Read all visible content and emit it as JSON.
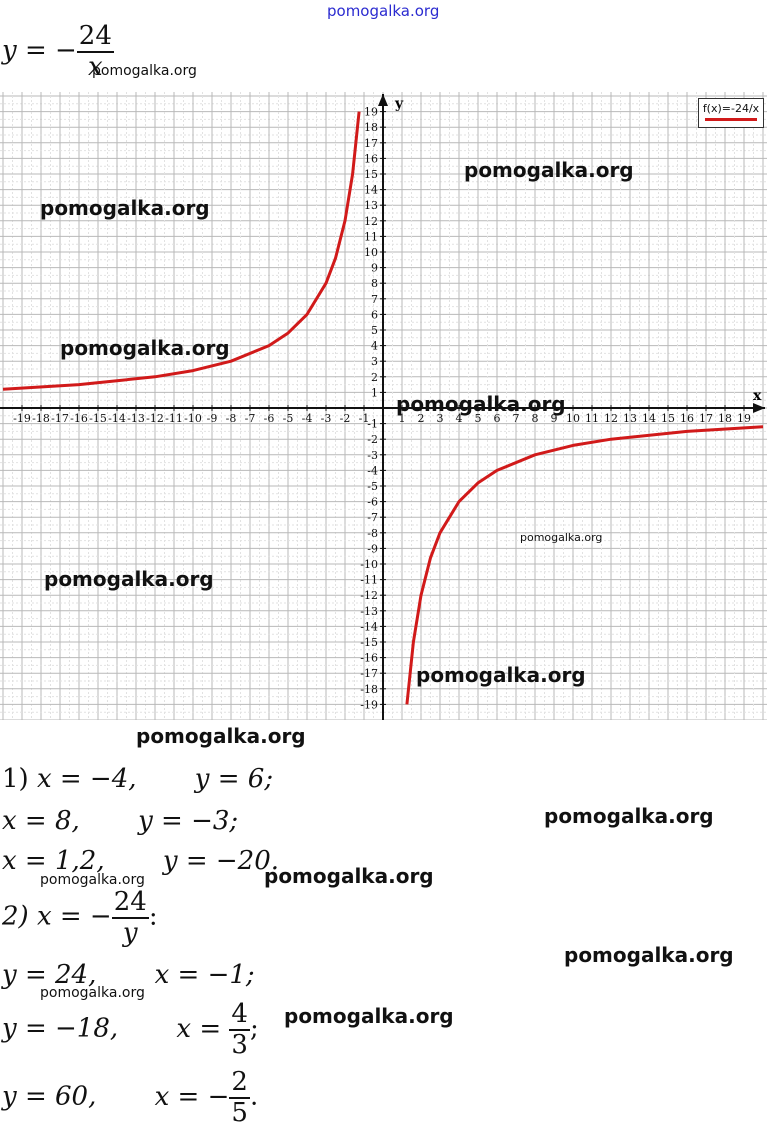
{
  "watermark_top": "pomogalka.org",
  "formula_main": {
    "lhs": "y = −",
    "num": "24",
    "den": "x"
  },
  "watermarks": [
    "pomogalka.org",
    "pomogalka.org",
    "pomogalka.org",
    "pomogalka.org",
    "pomogalka.org",
    "pomogalka.org",
    "pomogalka.org",
    "pomogalka.org",
    "pomogalka.org",
    "pomogalka.org",
    "pomogalka.org",
    "pomogalka.org",
    "pomogalka.org",
    "pomogalka.org",
    "pomogalka.org",
    "pomogalka.org"
  ],
  "chart_data": {
    "type": "line",
    "function": "f(x)=-24/x",
    "legend": "f(x)=-24/x",
    "legend_position": "top-right",
    "xlabel": "x",
    "ylabel": "y",
    "xlim": [
      -19,
      19
    ],
    "ylim": [
      -19,
      19
    ],
    "grid": true,
    "x_ticks": [
      -19,
      -18,
      -17,
      -16,
      -15,
      -14,
      -13,
      -12,
      -11,
      -10,
      -9,
      -8,
      -7,
      -6,
      -5,
      -4,
      -3,
      -2,
      -1,
      1,
      2,
      3,
      4,
      5,
      6,
      7,
      8,
      9,
      10,
      11,
      12,
      13,
      14,
      15,
      16,
      17,
      18,
      19
    ],
    "y_ticks": [
      -19,
      -18,
      -17,
      -16,
      -15,
      -14,
      -13,
      -12,
      -11,
      -10,
      -9,
      -8,
      -7,
      -6,
      -5,
      -4,
      -3,
      -2,
      -1,
      1,
      2,
      3,
      4,
      5,
      6,
      7,
      8,
      9,
      10,
      11,
      12,
      13,
      14,
      15,
      16,
      17,
      18,
      19
    ],
    "series": [
      {
        "color": "#d11a1a",
        "branch": "left",
        "x": [
          -20,
          -16,
          -12,
          -10,
          -8,
          -6,
          -5,
          -4,
          -3,
          -2.5,
          -2,
          -1.6,
          -1.26
        ],
        "y": [
          1.2,
          1.5,
          2,
          2.4,
          3,
          4,
          4.8,
          6,
          8,
          9.6,
          12,
          15,
          19
        ]
      },
      {
        "color": "#d11a1a",
        "branch": "right",
        "x": [
          1.26,
          1.6,
          2,
          2.5,
          3,
          4,
          5,
          6,
          8,
          10,
          12,
          16,
          20
        ],
        "y": [
          -19,
          -15,
          -12,
          -9.6,
          -8,
          -6,
          -4.8,
          -4,
          -3,
          -2.4,
          -2,
          -1.5,
          -1.2
        ]
      }
    ]
  },
  "solution": {
    "line1": {
      "prefix": "1) ",
      "x": "x = −4,",
      "y": "y = 6;"
    },
    "line2": {
      "x": "x = 8,",
      "y": "y = −3;"
    },
    "line3": {
      "x": "x = 1,2,",
      "y": "y = −20."
    },
    "line4": {
      "prefix": "2) x = −",
      "num": "24",
      "den": "y",
      "suffix": ":"
    },
    "line5": {
      "y": "y = 24,",
      "x": "x = −1;"
    },
    "line6": {
      "y": "y = −18,",
      "x": "x = ",
      "num": "4",
      "den": "3",
      "suffix": ";"
    },
    "line7": {
      "y": "y = 60,",
      "x": "x = −",
      "num": "2",
      "den": "5",
      "suffix": "."
    }
  }
}
